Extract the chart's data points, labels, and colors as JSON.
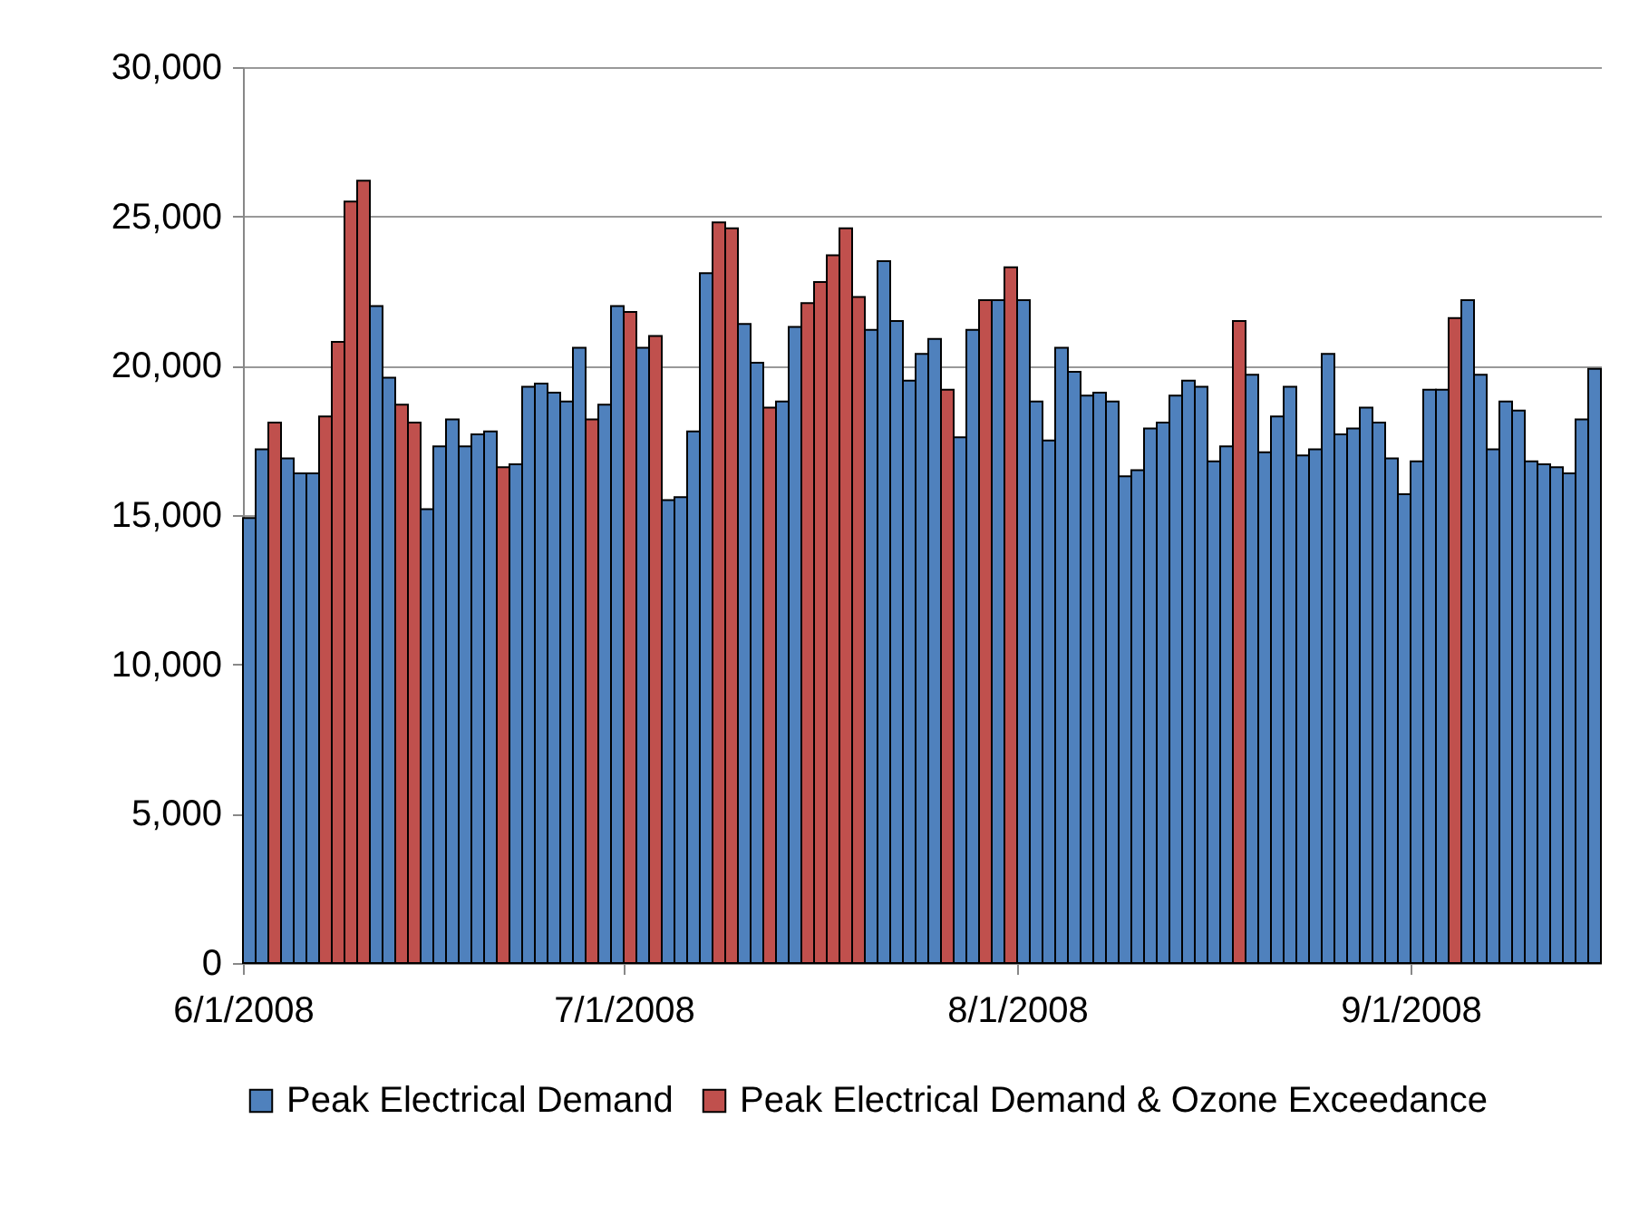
{
  "chart_data": {
    "type": "bar",
    "x": [
      "2008-06-01",
      "2008-06-02",
      "2008-06-03",
      "2008-06-04",
      "2008-06-05",
      "2008-06-06",
      "2008-06-07",
      "2008-06-08",
      "2008-06-09",
      "2008-06-10",
      "2008-06-11",
      "2008-06-12",
      "2008-06-13",
      "2008-06-14",
      "2008-06-15",
      "2008-06-16",
      "2008-06-17",
      "2008-06-18",
      "2008-06-19",
      "2008-06-20",
      "2008-06-21",
      "2008-06-22",
      "2008-06-23",
      "2008-06-24",
      "2008-06-25",
      "2008-06-26",
      "2008-06-27",
      "2008-06-28",
      "2008-06-29",
      "2008-06-30",
      "2008-07-01",
      "2008-07-02",
      "2008-07-03",
      "2008-07-04",
      "2008-07-05",
      "2008-07-06",
      "2008-07-07",
      "2008-07-08",
      "2008-07-09",
      "2008-07-10",
      "2008-07-11",
      "2008-07-12",
      "2008-07-13",
      "2008-07-14",
      "2008-07-15",
      "2008-07-16",
      "2008-07-17",
      "2008-07-18",
      "2008-07-19",
      "2008-07-20",
      "2008-07-21",
      "2008-07-22",
      "2008-07-23",
      "2008-07-24",
      "2008-07-25",
      "2008-07-26",
      "2008-07-27",
      "2008-07-28",
      "2008-07-29",
      "2008-07-30",
      "2008-07-31",
      "2008-08-01",
      "2008-08-02",
      "2008-08-03",
      "2008-08-04",
      "2008-08-05",
      "2008-08-06",
      "2008-08-07",
      "2008-08-08",
      "2008-08-09",
      "2008-08-10",
      "2008-08-11",
      "2008-08-12",
      "2008-08-13",
      "2008-08-14",
      "2008-08-15",
      "2008-08-16",
      "2008-08-17",
      "2008-08-18",
      "2008-08-19",
      "2008-08-20",
      "2008-08-21",
      "2008-08-22",
      "2008-08-23",
      "2008-08-24",
      "2008-08-25",
      "2008-08-26",
      "2008-08-27",
      "2008-08-28",
      "2008-08-29",
      "2008-08-30",
      "2008-08-31",
      "2008-09-01",
      "2008-09-02",
      "2008-09-03",
      "2008-09-04",
      "2008-09-05",
      "2008-09-06",
      "2008-09-07",
      "2008-09-08",
      "2008-09-09",
      "2008-09-10",
      "2008-09-11",
      "2008-09-12",
      "2008-09-13",
      "2008-09-14",
      "2008-09-15"
    ],
    "series": [
      {
        "name": "Peak Electrical Demand",
        "color": "#4f81bd",
        "values": [
          14900,
          17200,
          null,
          16900,
          16400,
          16400,
          null,
          null,
          null,
          null,
          22000,
          19600,
          null,
          null,
          15200,
          17300,
          18200,
          17300,
          17700,
          17800,
          null,
          16700,
          19300,
          19400,
          19100,
          18800,
          20600,
          null,
          18700,
          22000,
          null,
          20600,
          null,
          15500,
          15600,
          17800,
          23100,
          null,
          null,
          21400,
          20100,
          null,
          18800,
          21300,
          null,
          null,
          null,
          null,
          null,
          21200,
          23500,
          21500,
          19500,
          20400,
          20900,
          null,
          17600,
          21200,
          null,
          22200,
          null,
          22200,
          18800,
          17500,
          20600,
          19800,
          19000,
          19100,
          18800,
          16300,
          16500,
          17900,
          18100,
          19000,
          19500,
          19300,
          16800,
          17300,
          null,
          19700,
          17100,
          18300,
          19300,
          17000,
          17200,
          20400,
          17700,
          17900,
          18600,
          18100,
          16900,
          15700,
          16800,
          19200,
          19200,
          null,
          22200,
          19700,
          17200,
          18800,
          18500,
          16800,
          16700,
          16600,
          16400,
          18200,
          19900
        ]
      },
      {
        "name": "Peak Electrical Demand & Ozone Exceedance",
        "color": "#c0504d",
        "values": [
          null,
          null,
          18100,
          null,
          null,
          null,
          18300,
          20800,
          25500,
          26200,
          null,
          null,
          18700,
          18100,
          null,
          null,
          null,
          null,
          null,
          null,
          16600,
          null,
          null,
          null,
          null,
          null,
          null,
          18200,
          null,
          null,
          21800,
          null,
          21000,
          null,
          null,
          null,
          null,
          24800,
          24600,
          null,
          null,
          18600,
          null,
          null,
          22100,
          22800,
          23700,
          24600,
          22300,
          null,
          null,
          null,
          null,
          null,
          null,
          19200,
          null,
          null,
          22200,
          null,
          23300,
          null,
          null,
          null,
          null,
          null,
          null,
          null,
          null,
          null,
          null,
          null,
          null,
          null,
          null,
          null,
          null,
          null,
          21500,
          null,
          null,
          null,
          null,
          null,
          null,
          null,
          null,
          null,
          null,
          null,
          null,
          null,
          null,
          null,
          null,
          21600,
          null,
          null,
          null,
          null,
          null,
          null,
          null,
          null,
          null,
          null,
          null
        ]
      }
    ],
    "xlim": [
      "2008-06-01",
      "2008-09-16"
    ],
    "xticks": [
      {
        "value": "2008-06-01",
        "label": "6/1/2008"
      },
      {
        "value": "2008-07-01",
        "label": "7/1/2008"
      },
      {
        "value": "2008-08-01",
        "label": "8/1/2008"
      },
      {
        "value": "2008-09-01",
        "label": "9/1/2008"
      }
    ],
    "ylim": [
      0,
      30000
    ],
    "yticks": [
      {
        "value": 0,
        "label": "0"
      },
      {
        "value": 5000,
        "label": "5,000"
      },
      {
        "value": 10000,
        "label": "10,000"
      },
      {
        "value": 15000,
        "label": "15,000"
      },
      {
        "value": 20000,
        "label": "20,000"
      },
      {
        "value": 25000,
        "label": "25,000"
      },
      {
        "value": 30000,
        "label": "30,000"
      }
    ],
    "grid": "y",
    "legend": "bottom"
  }
}
